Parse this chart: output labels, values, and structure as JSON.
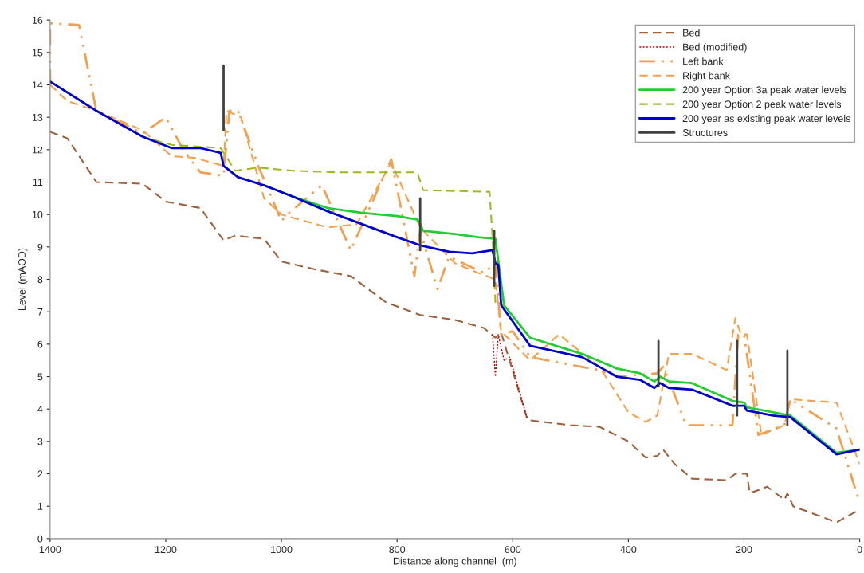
{
  "chart_data": {
    "type": "line",
    "xlabel": "Distance along channel  (m)",
    "ylabel": "Level (mAOD)",
    "xlim": [
      1400,
      0
    ],
    "xticks": [
      1400,
      1200,
      1000,
      800,
      600,
      400,
      200,
      0
    ],
    "ylim": [
      0,
      16
    ],
    "yticks": [
      0,
      1,
      2,
      3,
      4,
      5,
      6,
      7,
      8,
      9,
      10,
      11,
      12,
      13,
      14,
      15,
      16
    ],
    "grid": false,
    "legend": "top right",
    "marker": "none",
    "series": [
      {
        "name": "Bed",
        "color": "#a0603a",
        "line_style": "dashed",
        "x": [
          1400,
          1370,
          1320,
          1240,
          1200,
          1140,
          1100,
          1080,
          1030,
          1000,
          940,
          880,
          820,
          760,
          700,
          650,
          630,
          620,
          575,
          570,
          500,
          450,
          400,
          370,
          350,
          340,
          320,
          290,
          230,
          215,
          195,
          190,
          160,
          130,
          125,
          115,
          40,
          0
        ],
        "values": [
          12.55,
          12.35,
          11.0,
          10.95,
          10.4,
          10.2,
          9.2,
          9.35,
          9.25,
          8.55,
          8.3,
          8.1,
          7.3,
          6.9,
          6.75,
          6.5,
          6.2,
          6.35,
          3.7,
          3.65,
          3.5,
          3.45,
          3.0,
          2.5,
          2.55,
          2.75,
          2.3,
          1.85,
          1.8,
          2.0,
          2.0,
          1.4,
          1.6,
          1.2,
          1.4,
          1.0,
          0.5,
          0.9
        ]
      },
      {
        "name": "Bed (modified)",
        "color": "#c00000",
        "line_style": "dotted",
        "x": [
          635,
          630,
          625,
          615,
          605,
          575
        ],
        "values": [
          6.3,
          5.0,
          6.3,
          5.5,
          5.6,
          3.7
        ]
      },
      {
        "name": "Left bank",
        "color": "#f0a050",
        "line_style": "dashdot",
        "x": [
          1400,
          1400,
          1350,
          1320,
          1240,
          1200,
          1170,
          1140,
          1100,
          1090,
          1075,
          1040,
          1000,
          990,
          930,
          880,
          810,
          770,
          760,
          730,
          710,
          650,
          630,
          620,
          600,
          570,
          450,
          420,
          350,
          340,
          330,
          300,
          220,
          210,
          200,
          175,
          130,
          120,
          40,
          0
        ],
        "values": [
          14.0,
          15.9,
          15.85,
          13.2,
          12.5,
          13.0,
          12.0,
          11.3,
          11.2,
          13.2,
          13.2,
          11.5,
          9.8,
          10.0,
          10.9,
          8.9,
          11.7,
          8.1,
          9.5,
          7.7,
          8.7,
          8.2,
          8.5,
          6.3,
          6.4,
          5.6,
          5.2,
          5.0,
          5.1,
          5.3,
          4.9,
          3.5,
          3.5,
          6.3,
          6.3,
          3.2,
          3.5,
          4.3,
          3.4,
          1.1
        ]
      },
      {
        "name": "Right bank",
        "color": "#f5a04a",
        "line_style": "dashed",
        "x": [
          1400,
          1370,
          1320,
          1240,
          1190,
          1150,
          1100,
          1095,
          1070,
          1030,
          1000,
          960,
          920,
          870,
          810,
          760,
          700,
          660,
          630,
          620,
          570,
          520,
          450,
          400,
          370,
          350,
          330,
          290,
          230,
          215,
          205,
          195,
          170,
          130,
          120,
          40,
          0
        ],
        "values": [
          14.0,
          13.5,
          13.2,
          12.6,
          11.8,
          11.75,
          11.5,
          13.2,
          13.0,
          10.5,
          10.0,
          9.8,
          9.6,
          9.7,
          11.6,
          9.6,
          8.5,
          8.2,
          8.0,
          6.4,
          5.5,
          6.3,
          5.3,
          3.9,
          3.6,
          3.8,
          5.7,
          5.7,
          5.2,
          6.8,
          6.3,
          6.3,
          3.2,
          3.5,
          4.3,
          4.2,
          2.3
        ]
      },
      {
        "name": "200 year Option 3a peak water levels",
        "color": "#22cc33",
        "line_style": "solid",
        "x": [
          1030,
          980,
          920,
          860,
          800,
          765,
          760,
          755,
          700,
          660,
          630,
          615,
          570,
          480,
          420,
          380,
          355,
          345,
          330,
          290,
          220,
          200,
          195,
          150,
          120,
          40,
          0
        ],
        "values": [
          10.9,
          10.55,
          10.2,
          10.05,
          9.95,
          9.85,
          9.7,
          9.5,
          9.4,
          9.3,
          9.25,
          7.2,
          6.2,
          5.7,
          5.25,
          5.1,
          4.85,
          5.0,
          4.85,
          4.8,
          4.25,
          4.2,
          4.05,
          3.9,
          3.8,
          2.65,
          2.75
        ]
      },
      {
        "name": "200 year Option 2 peak water levels",
        "color": "#99bb22",
        "line_style": "dashed",
        "x": [
          1400,
          1320,
          1240,
          1190,
          1105,
          1080,
          1040,
          980,
          900,
          765,
          755,
          640,
          635,
          630,
          615
        ],
        "values": [
          14.1,
          13.2,
          12.4,
          12.15,
          12.05,
          11.35,
          11.45,
          11.35,
          11.3,
          11.3,
          10.75,
          10.7,
          9.3,
          7.3,
          7.2
        ]
      },
      {
        "name": "200 year as existing peak water levels",
        "color": "#0000cc",
        "line_style": "solid",
        "x": [
          1400,
          1320,
          1240,
          1190,
          1140,
          1105,
          1100,
          1075,
          1030,
          980,
          920,
          860,
          800,
          760,
          710,
          670,
          635,
          630,
          625,
          620,
          570,
          480,
          420,
          380,
          355,
          345,
          330,
          290,
          220,
          200,
          195,
          150,
          120,
          40,
          0
        ],
        "values": [
          14.1,
          13.2,
          12.4,
          12.05,
          12.05,
          11.9,
          11.5,
          11.15,
          10.9,
          10.55,
          10.1,
          9.7,
          9.3,
          9.05,
          8.85,
          8.8,
          8.9,
          8.5,
          8.45,
          7.2,
          5.95,
          5.6,
          5.0,
          4.9,
          4.65,
          4.8,
          4.65,
          4.6,
          4.1,
          4.1,
          3.95,
          3.8,
          3.75,
          2.6,
          2.75
        ]
      },
      {
        "name": "Structures",
        "color": "#404040",
        "line_style": "solid",
        "x": [
          1100,
          1100
        ],
        "values": [
          12.6,
          14.6
        ]
      },
      {
        "color": "#404040",
        "line_style": "solid",
        "x": [
          760,
          760
        ],
        "values": [
          8.9,
          10.5
        ]
      },
      {
        "color": "#404040",
        "line_style": "solid",
        "x": [
          632,
          632
        ],
        "values": [
          7.8,
          9.5
        ]
      },
      {
        "color": "#404040",
        "line_style": "solid",
        "x": [
          348,
          348
        ],
        "values": [
          4.7,
          6.1
        ]
      },
      {
        "color": "#404040",
        "line_style": "solid",
        "x": [
          212,
          212
        ],
        "values": [
          3.8,
          6.1
        ]
      },
      {
        "color": "#404040",
        "line_style": "solid",
        "x": [
          125,
          125
        ],
        "values": [
          3.5,
          5.8
        ]
      }
    ]
  }
}
